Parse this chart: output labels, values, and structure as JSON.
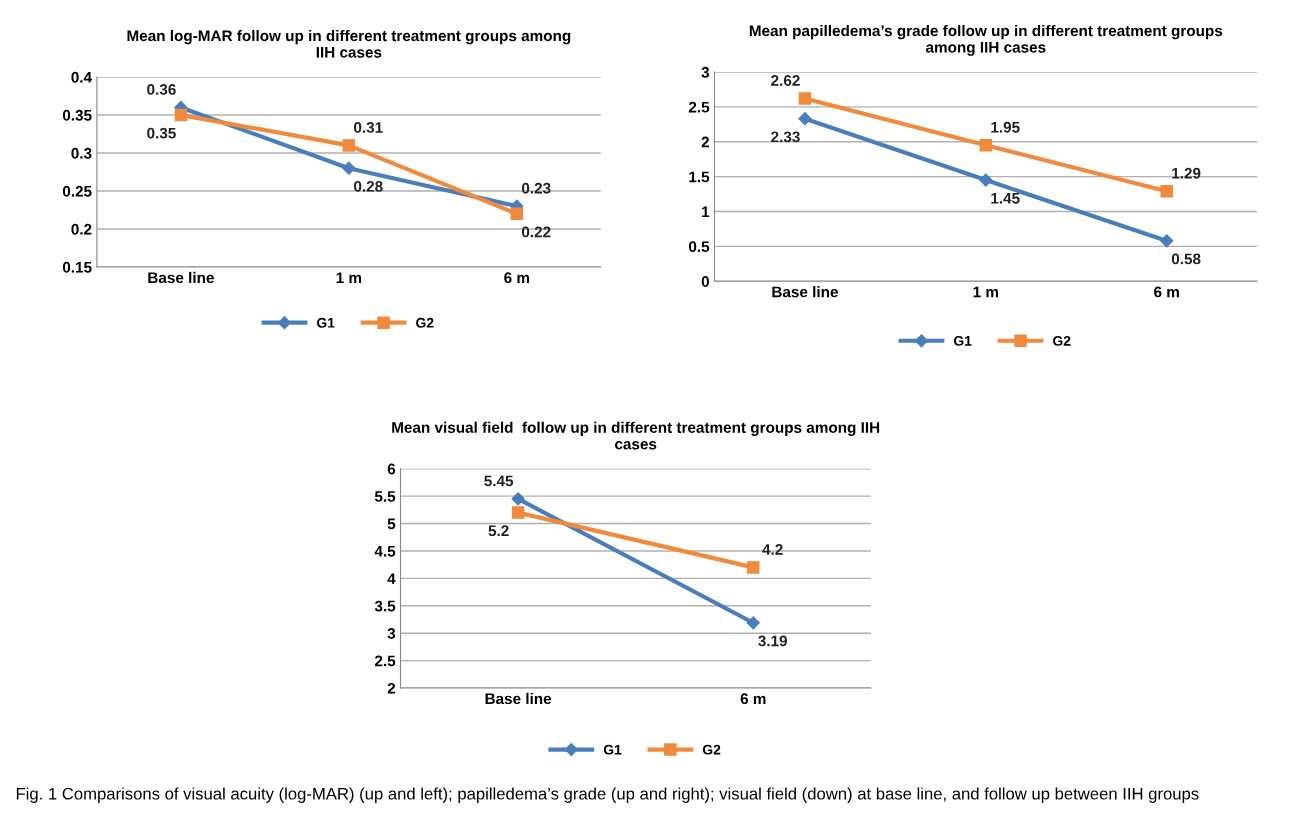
{
  "chart_data": [
    {
      "type": "line",
      "title": "Mean log-MAR follow up in different treatment groups among\nIIH cases",
      "categories": [
        "Base line",
        "1 m",
        "6 m"
      ],
      "series": [
        {
          "name": "G1",
          "color": "#4a7ebb",
          "marker": "diamond",
          "values": [
            0.36,
            0.28,
            0.23
          ]
        },
        {
          "name": "G2",
          "color": "#f08a3c",
          "marker": "square",
          "values": [
            0.35,
            0.31,
            0.22
          ]
        }
      ],
      "ylim": [
        0.15,
        0.4
      ],
      "yticks": [
        0.15,
        0.2,
        0.25,
        0.3,
        0.35,
        0.4
      ],
      "grid": "y",
      "legend": "bottom",
      "data_labels": true
    },
    {
      "type": "line",
      "title": "Mean papilledema’s grade follow up in different treatment groups\namong IIH cases",
      "categories": [
        "Base line",
        "1 m",
        "6 m"
      ],
      "series": [
        {
          "name": "G1",
          "color": "#4a7ebb",
          "marker": "diamond",
          "values": [
            2.33,
            1.45,
            0.58
          ]
        },
        {
          "name": "G2",
          "color": "#f08a3c",
          "marker": "square",
          "values": [
            2.62,
            1.95,
            1.29
          ]
        }
      ],
      "ylim": [
        0,
        3
      ],
      "yticks": [
        0,
        0.5,
        1,
        1.5,
        2,
        2.5,
        3
      ],
      "grid": "y",
      "legend": "bottom",
      "data_labels": true
    },
    {
      "type": "line",
      "title": "Mean visual field  follow up in different treatment groups among IIH\ncases",
      "categories": [
        "Base line",
        "6 m"
      ],
      "series": [
        {
          "name": "G1",
          "color": "#4a7ebb",
          "marker": "diamond",
          "values": [
            5.45,
            3.19
          ]
        },
        {
          "name": "G2",
          "color": "#f08a3c",
          "marker": "square",
          "values": [
            5.2,
            4.2
          ]
        }
      ],
      "ylim": [
        2,
        6
      ],
      "yticks": [
        2,
        2.5,
        3,
        3.5,
        4,
        4.5,
        5,
        5.5,
        6
      ],
      "grid": "y",
      "legend": "bottom",
      "data_labels": true,
      "annotations": [
        "Fig. 1 Comparisons of visual acuity (log-MAR) (up and left); papilledema’s grade (up and right); visual field (down) at base line, and follow up between IIH groups"
      ]
    }
  ]
}
